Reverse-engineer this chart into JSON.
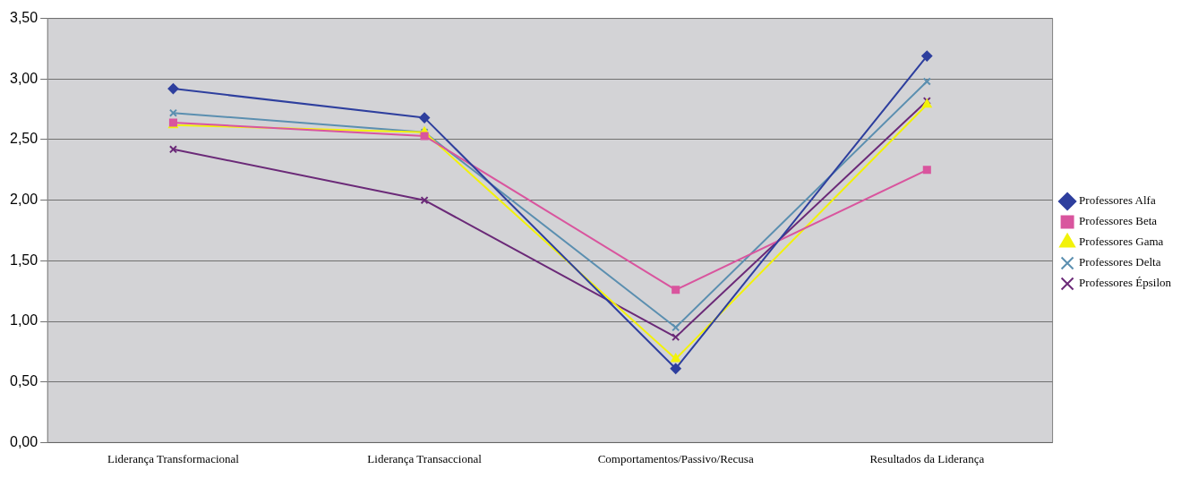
{
  "chart_data": {
    "type": "line",
    "categories": [
      "Liderança Transformacional",
      "Liderança Transaccional",
      "Comportamentos/Passivo/Recusa",
      "Resultados da Liderança"
    ],
    "series": [
      {
        "name": "Professores Alfa",
        "color": "#2e3f9e",
        "marker": "diamond",
        "values": [
          2.92,
          2.68,
          0.61,
          3.19
        ]
      },
      {
        "name": "Professores Beta",
        "color": "#d9559e",
        "marker": "square",
        "values": [
          2.64,
          2.53,
          1.26,
          2.25
        ]
      },
      {
        "name": "Professores Gama",
        "color": "#f2f20a",
        "marker": "triangle",
        "values": [
          2.62,
          2.56,
          0.69,
          2.79
        ]
      },
      {
        "name": "Professores Delta",
        "color": "#5b8fb0",
        "marker": "cross",
        "values": [
          2.72,
          2.56,
          0.95,
          2.98
        ]
      },
      {
        "name": "Professores Épsilon",
        "color": "#6b2a78",
        "marker": "cross",
        "values": [
          2.42,
          2.0,
          0.87,
          2.82
        ]
      }
    ],
    "ylim": [
      0,
      3.5
    ],
    "yticks": [
      {
        "value": 0,
        "label": "0,00"
      },
      {
        "value": 0.5,
        "label": "0,50"
      },
      {
        "value": 1,
        "label": "1,00"
      },
      {
        "value": 1.5,
        "label": "1,50"
      },
      {
        "value": 2,
        "label": "2,00"
      },
      {
        "value": 2.5,
        "label": "2,50"
      },
      {
        "value": 3,
        "label": "3,00"
      },
      {
        "value": 3.5,
        "label": "3,50"
      }
    ],
    "grid": "y",
    "legend": "right"
  }
}
